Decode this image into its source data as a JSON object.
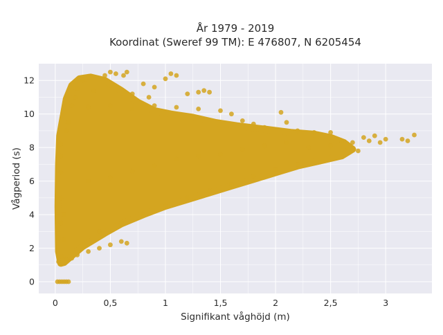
{
  "chart_data": {
    "type": "scatter",
    "title_lines": [
      "År 1979 - 2019",
      "Koordinat (Sweref 99 TM): E 476807, N 6205454"
    ],
    "xlabel": "Signifikant våghöjd (m)",
    "ylabel": "Vågperiod (s)",
    "xlim": [
      -0.15,
      3.42
    ],
    "ylim": [
      -0.7,
      13.0
    ],
    "x_ticks": [
      0,
      0.5,
      1,
      1.5,
      2,
      2.5,
      3
    ],
    "x_tick_labels": [
      "0",
      "0,5",
      "1",
      "1,5",
      "2",
      "2,5",
      "3"
    ],
    "y_ticks": [
      0,
      2,
      4,
      6,
      8,
      10,
      12
    ],
    "y_tick_labels": [
      "0",
      "2",
      "4",
      "6",
      "8",
      "10",
      "12"
    ],
    "grid": true,
    "legend": false,
    "colors": {
      "marker": "#d4a520",
      "plot_background": "#e9e9f1",
      "grid": "#ffffff"
    },
    "series": [
      {
        "points": [
          [
            0.02,
            0.0
          ],
          [
            0.04,
            0.0
          ],
          [
            0.06,
            0.0
          ],
          [
            0.08,
            0.0
          ],
          [
            0.1,
            0.0
          ],
          [
            0.12,
            0.0
          ],
          [
            0.03,
            1.2
          ],
          [
            0.03,
            2.6
          ],
          [
            0.06,
            1.5
          ],
          [
            0.1,
            1.3
          ],
          [
            0.15,
            1.4
          ],
          [
            0.2,
            1.6
          ],
          [
            0.3,
            1.8
          ],
          [
            0.4,
            2.0
          ],
          [
            0.5,
            2.2
          ],
          [
            0.6,
            2.4
          ],
          [
            0.65,
            2.3
          ],
          [
            0.05,
            3.5
          ],
          [
            0.05,
            5.0
          ],
          [
            0.05,
            6.5
          ],
          [
            0.05,
            7.5
          ],
          [
            0.05,
            8.2
          ],
          [
            0.08,
            2.5
          ],
          [
            0.08,
            4.0
          ],
          [
            0.1,
            9.0
          ],
          [
            0.12,
            9.5
          ],
          [
            0.15,
            10.5
          ],
          [
            0.18,
            11.0
          ],
          [
            0.2,
            11.5
          ],
          [
            0.25,
            12.0
          ],
          [
            0.3,
            12.2
          ],
          [
            0.35,
            11.4
          ],
          [
            0.45,
            12.3
          ],
          [
            0.5,
            12.5
          ],
          [
            0.55,
            12.4
          ],
          [
            0.62,
            12.3
          ],
          [
            0.65,
            12.5
          ],
          [
            0.7,
            11.2
          ],
          [
            0.8,
            11.8
          ],
          [
            0.85,
            11.0
          ],
          [
            0.9,
            11.6
          ],
          [
            1.0,
            12.1
          ],
          [
            1.05,
            12.4
          ],
          [
            1.1,
            12.3
          ],
          [
            1.2,
            11.2
          ],
          [
            1.3,
            11.3
          ],
          [
            1.35,
            11.4
          ],
          [
            1.4,
            11.3
          ],
          [
            0.3,
            10.4
          ],
          [
            0.5,
            10.5
          ],
          [
            0.7,
            10.3
          ],
          [
            0.9,
            10.5
          ],
          [
            1.1,
            10.4
          ],
          [
            1.3,
            10.3
          ],
          [
            1.5,
            10.2
          ],
          [
            1.6,
            10.0
          ],
          [
            2.05,
            10.1
          ],
          [
            2.1,
            9.5
          ],
          [
            1.7,
            9.6
          ],
          [
            1.8,
            9.4
          ],
          [
            1.9,
            9.2
          ],
          [
            2.2,
            9.0
          ],
          [
            2.35,
            8.9
          ],
          [
            2.5,
            8.9
          ],
          [
            0.3,
            6.0
          ],
          [
            0.5,
            6.2
          ],
          [
            0.7,
            6.6
          ],
          [
            0.9,
            6.9
          ],
          [
            1.1,
            7.3
          ],
          [
            1.3,
            7.5
          ],
          [
            1.5,
            7.6
          ],
          [
            1.7,
            7.9
          ],
          [
            1.9,
            8.1
          ],
          [
            2.1,
            8.3
          ],
          [
            2.3,
            8.0
          ],
          [
            2.5,
            8.1
          ],
          [
            2.6,
            8.4
          ],
          [
            2.7,
            8.3
          ],
          [
            2.75,
            7.8
          ],
          [
            2.8,
            8.6
          ],
          [
            2.85,
            8.4
          ],
          [
            2.9,
            8.7
          ],
          [
            2.95,
            8.3
          ],
          [
            3.0,
            8.5
          ],
          [
            3.15,
            8.5
          ],
          [
            3.2,
            8.4
          ],
          [
            3.26,
            8.75
          ],
          [
            0.4,
            3.0
          ],
          [
            0.6,
            3.5
          ],
          [
            0.8,
            4.0
          ],
          [
            1.0,
            4.5
          ],
          [
            1.2,
            5.0
          ],
          [
            1.4,
            5.4
          ],
          [
            1.6,
            5.8
          ],
          [
            1.8,
            6.3
          ],
          [
            2.0,
            6.7
          ],
          [
            2.2,
            7.0
          ]
        ]
      }
    ],
    "upper_envelope": [
      [
        0.04,
        8.7
      ],
      [
        0.07,
        9.8
      ],
      [
        0.1,
        10.9
      ],
      [
        0.15,
        11.7
      ],
      [
        0.22,
        12.1
      ],
      [
        0.32,
        12.2
      ],
      [
        0.45,
        12.0
      ],
      [
        0.6,
        11.4
      ],
      [
        0.75,
        10.7
      ],
      [
        0.9,
        10.2
      ],
      [
        1.05,
        10.0
      ],
      [
        1.25,
        9.8
      ],
      [
        1.45,
        9.5
      ],
      [
        1.65,
        9.3
      ],
      [
        1.9,
        9.1
      ],
      [
        2.15,
        8.9
      ],
      [
        2.35,
        8.8
      ],
      [
        2.5,
        8.6
      ],
      [
        2.62,
        8.3
      ],
      [
        2.7,
        7.9
      ]
    ],
    "lower_envelope": [
      [
        2.7,
        7.9
      ],
      [
        2.6,
        7.5
      ],
      [
        2.4,
        7.2
      ],
      [
        2.2,
        6.9
      ],
      [
        2.0,
        6.5
      ],
      [
        1.8,
        6.1
      ],
      [
        1.6,
        5.7
      ],
      [
        1.4,
        5.3
      ],
      [
        1.2,
        4.9
      ],
      [
        1.0,
        4.5
      ],
      [
        0.8,
        4.0
      ],
      [
        0.6,
        3.45
      ],
      [
        0.45,
        2.9
      ],
      [
        0.35,
        2.5
      ],
      [
        0.25,
        2.1
      ],
      [
        0.15,
        1.55
      ],
      [
        0.08,
        1.15
      ],
      [
        0.05,
        1.1
      ],
      [
        0.03,
        1.8
      ],
      [
        0.025,
        4.5
      ],
      [
        0.03,
        7.0
      ]
    ]
  }
}
